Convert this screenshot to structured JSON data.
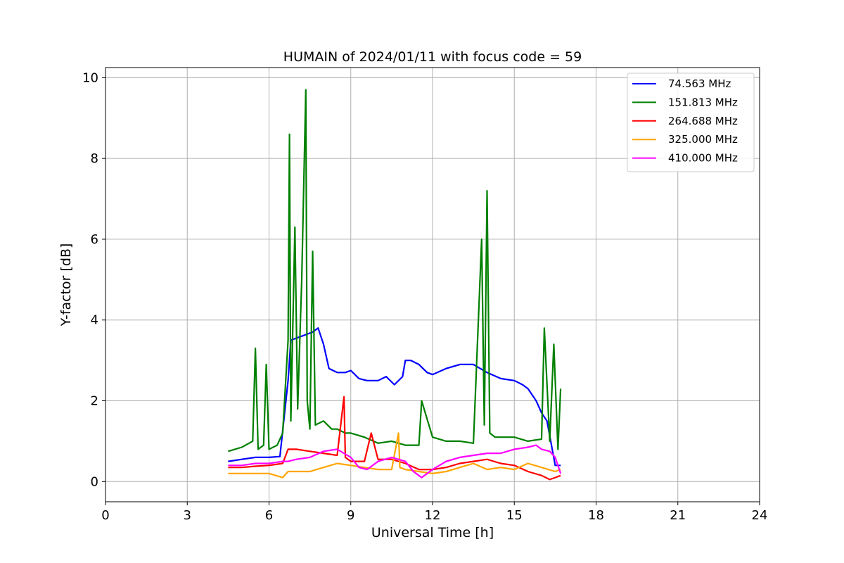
{
  "chart_data": {
    "type": "line",
    "title": "HUMAIN of 2024/01/11 with focus code = 59",
    "xlabel": "Universal Time [h]",
    "ylabel": "Y-factor [dB]",
    "xlim": [
      0,
      24
    ],
    "ylim": [
      -0.5,
      10.25
    ],
    "xticks": [
      0,
      3,
      6,
      9,
      12,
      15,
      18,
      21,
      24
    ],
    "yticks": [
      0,
      2,
      4,
      6,
      8,
      10
    ],
    "grid": true,
    "legend_position": "top-right",
    "series": [
      {
        "name": "74.563 MHz",
        "color": "#0000ff",
        "x": [
          4.5,
          5.0,
          5.5,
          6.0,
          6.4,
          6.7,
          6.8,
          7.2,
          7.6,
          7.8,
          8.0,
          8.2,
          8.5,
          8.8,
          9.0,
          9.3,
          9.6,
          10.0,
          10.3,
          10.6,
          10.9,
          11.0,
          11.2,
          11.5,
          11.8,
          12.0,
          12.5,
          13.0,
          13.5,
          14.0,
          14.5,
          15.0,
          15.3,
          15.5,
          15.8,
          16.0,
          16.2,
          16.5,
          16.7
        ],
        "y": [
          0.5,
          0.55,
          0.6,
          0.6,
          0.62,
          2.5,
          3.5,
          3.6,
          3.7,
          3.8,
          3.4,
          2.8,
          2.7,
          2.7,
          2.75,
          2.55,
          2.5,
          2.5,
          2.6,
          2.4,
          2.6,
          3.0,
          3.0,
          2.9,
          2.7,
          2.65,
          2.8,
          2.9,
          2.9,
          2.7,
          2.55,
          2.5,
          2.4,
          2.3,
          2.0,
          1.7,
          1.5,
          0.4,
          0.4
        ]
      },
      {
        "name": "151.813 MHz",
        "color": "#008000",
        "x": [
          4.5,
          5.0,
          5.4,
          5.5,
          5.6,
          5.8,
          5.9,
          6.0,
          6.3,
          6.5,
          6.7,
          6.75,
          6.8,
          6.95,
          7.05,
          7.2,
          7.35,
          7.4,
          7.5,
          7.6,
          7.7,
          8.0,
          8.3,
          8.5,
          8.8,
          9.0,
          9.5,
          10.0,
          10.5,
          11.0,
          11.5,
          11.6,
          12.0,
          12.5,
          13.0,
          13.5,
          13.8,
          13.9,
          14.0,
          14.1,
          14.3,
          15.0,
          15.5,
          16.0,
          16.1,
          16.3,
          16.45,
          16.6,
          16.7
        ],
        "y": [
          0.75,
          0.85,
          1.0,
          3.3,
          0.8,
          0.9,
          2.9,
          0.8,
          0.9,
          1.2,
          3.5,
          8.6,
          1.5,
          6.3,
          1.8,
          5.0,
          9.7,
          2.0,
          1.3,
          5.7,
          1.4,
          1.5,
          1.3,
          1.3,
          1.2,
          1.2,
          1.1,
          0.95,
          1.0,
          0.9,
          0.9,
          2.0,
          1.1,
          1.0,
          1.0,
          0.95,
          6.0,
          1.4,
          7.2,
          1.2,
          1.1,
          1.1,
          1.0,
          1.05,
          3.8,
          1.0,
          3.4,
          0.8,
          2.3
        ]
      },
      {
        "name": "264.688 MHz",
        "color": "#ff0000",
        "x": [
          4.5,
          5.0,
          5.5,
          6.0,
          6.5,
          6.7,
          7.0,
          7.5,
          8.0,
          8.5,
          8.75,
          8.8,
          9.0,
          9.5,
          9.75,
          10.0,
          10.5,
          11.0,
          11.5,
          12.0,
          12.5,
          13.0,
          13.5,
          14.0,
          14.5,
          15.0,
          15.5,
          16.0,
          16.3,
          16.5,
          16.7
        ],
        "y": [
          0.35,
          0.35,
          0.38,
          0.4,
          0.45,
          0.8,
          0.8,
          0.75,
          0.7,
          0.65,
          2.1,
          0.6,
          0.5,
          0.5,
          1.2,
          0.55,
          0.55,
          0.45,
          0.3,
          0.3,
          0.35,
          0.45,
          0.5,
          0.55,
          0.45,
          0.4,
          0.25,
          0.15,
          0.05,
          0.1,
          0.15
        ]
      },
      {
        "name": "325.000 MHz",
        "color": "#ffa500",
        "x": [
          4.5,
          5.0,
          5.5,
          6.0,
          6.5,
          6.7,
          7.0,
          7.5,
          8.0,
          8.5,
          9.0,
          9.5,
          10.0,
          10.5,
          10.75,
          10.8,
          11.0,
          11.5,
          12.0,
          12.5,
          13.0,
          13.5,
          14.0,
          14.5,
          15.0,
          15.5,
          16.0,
          16.5,
          16.7
        ],
        "y": [
          0.2,
          0.2,
          0.2,
          0.2,
          0.1,
          0.25,
          0.25,
          0.25,
          0.35,
          0.45,
          0.4,
          0.35,
          0.3,
          0.3,
          1.2,
          0.35,
          0.3,
          0.25,
          0.2,
          0.25,
          0.35,
          0.45,
          0.3,
          0.35,
          0.3,
          0.45,
          0.35,
          0.25,
          0.3
        ]
      },
      {
        "name": "410.000 MHz",
        "color": "#ff00ff",
        "x": [
          4.5,
          5.0,
          5.5,
          6.0,
          6.5,
          6.7,
          7.0,
          7.5,
          8.0,
          8.5,
          9.0,
          9.3,
          9.6,
          10.0,
          10.5,
          11.0,
          11.3,
          11.6,
          12.0,
          12.5,
          13.0,
          13.5,
          14.0,
          14.5,
          15.0,
          15.5,
          15.8,
          16.0,
          16.3,
          16.5,
          16.7
        ],
        "y": [
          0.4,
          0.4,
          0.45,
          0.45,
          0.5,
          0.5,
          0.55,
          0.6,
          0.75,
          0.8,
          0.6,
          0.35,
          0.3,
          0.5,
          0.6,
          0.5,
          0.25,
          0.1,
          0.3,
          0.5,
          0.6,
          0.65,
          0.7,
          0.7,
          0.8,
          0.85,
          0.9,
          0.8,
          0.75,
          0.6,
          0.2
        ]
      }
    ]
  }
}
